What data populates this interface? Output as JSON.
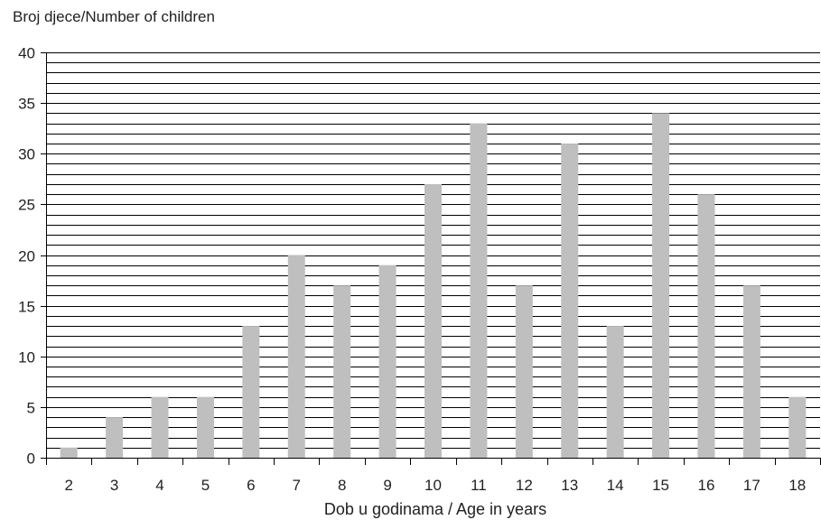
{
  "chart_data": {
    "type": "bar",
    "title": "",
    "ylabel": "Broj djece/Number of children",
    "xlabel": "Dob u godinama / Age in years",
    "categories": [
      "2",
      "3",
      "4",
      "5",
      "6",
      "7",
      "8",
      "9",
      "10",
      "11",
      "12",
      "13",
      "14",
      "15",
      "16",
      "17",
      "18"
    ],
    "values": [
      1,
      4,
      6,
      6,
      13,
      20,
      17,
      19,
      27,
      33,
      17,
      31,
      13,
      34,
      26,
      17,
      6
    ],
    "ylim": [
      0,
      40
    ],
    "yticks": [
      0,
      5,
      10,
      15,
      20,
      25,
      30,
      35,
      40
    ],
    "minor_grid_step": 1,
    "grid": true,
    "bar_color": "#bfbfbf",
    "grid_color": "#000000"
  }
}
